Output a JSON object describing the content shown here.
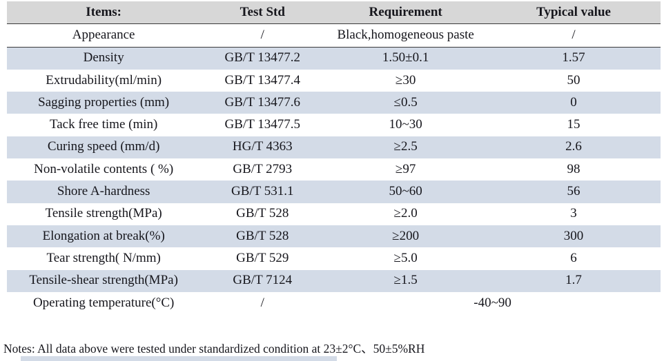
{
  "colors": {
    "header_bg": "#d7d7d7",
    "alt_row_bg": "#d3dbe7",
    "text": "#16161c"
  },
  "table": {
    "headers": [
      "Items:",
      "Test Std",
      "Requirement",
      "Typical value"
    ],
    "rows": [
      {
        "item": "Appearance",
        "std": "/",
        "req": "Black,homogeneous paste",
        "val": "/"
      },
      {
        "item": "Density",
        "std": "GB/T 13477.2",
        "req": "1.50±0.1",
        "val": "1.57"
      },
      {
        "item": "Extrudability(ml/min)",
        "std": "GB/T 13477.4",
        "req": "≥30",
        "val": "50"
      },
      {
        "item": "Sagging properties (mm)",
        "std": "GB/T 13477.6",
        "req": "≤0.5",
        "val": "0"
      },
      {
        "item": "Tack free time (min)",
        "std": "GB/T 13477.5",
        "req": "10~30",
        "val": "15"
      },
      {
        "item": "Curing speed (mm/d)",
        "std": "HG/T 4363",
        "req": "≥2.5",
        "val": "2.6"
      },
      {
        "item": "Non-volatile contents ( %)",
        "std": "GB/T 2793",
        "req": "≥97",
        "val": "98"
      },
      {
        "item": "Shore A-hardness",
        "std": "GB/T 531.1",
        "req": "50~60",
        "val": "56"
      },
      {
        "item": "Tensile strength(MPa)",
        "std": "GB/T 528",
        "req": "≥2.0",
        "val": "3"
      },
      {
        "item": "Elongation at break(%)",
        "std": "GB/T 528",
        "req": "≥200",
        "val": "300"
      },
      {
        "item": "Tear strength( N/mm)",
        "std": "GB/T 529",
        "req": "≥5.0",
        "val": "6"
      },
      {
        "item": "Tensile-shear strength(MPa)",
        "std": "GB/T 7124",
        "req": "≥1.5",
        "val": "1.7"
      },
      {
        "item": "Operating temperature(°C)",
        "std": "/",
        "req": "-40~90",
        "val": "",
        "merged": true
      }
    ]
  },
  "notes": "Notes: All data above were tested under standardized condition at 23±2°C、50±5%RH"
}
